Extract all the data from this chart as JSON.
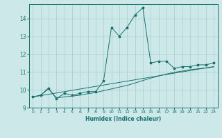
{
  "xlabel": "Humidex (Indice chaleur)",
  "bg_color": "#cce8e8",
  "line_color": "#1a7070",
  "grid_color": "#aacccc",
  "xlim": [
    -0.5,
    23.5
  ],
  "ylim": [
    9.0,
    14.8
  ],
  "yticks": [
    9,
    10,
    11,
    12,
    13,
    14
  ],
  "xticks": [
    0,
    1,
    2,
    3,
    4,
    5,
    6,
    7,
    8,
    9,
    10,
    11,
    12,
    13,
    14,
    15,
    16,
    17,
    18,
    19,
    20,
    21,
    22,
    23
  ],
  "series1_x": [
    0,
    1,
    2,
    3,
    4,
    5,
    6,
    7,
    8,
    9,
    10,
    11,
    12,
    13,
    14,
    15,
    16,
    17,
    18,
    19,
    20,
    21,
    22,
    23
  ],
  "series1_y": [
    9.6,
    9.7,
    10.1,
    9.5,
    9.8,
    9.7,
    9.8,
    9.9,
    9.9,
    10.5,
    13.5,
    13.0,
    13.5,
    14.2,
    14.6,
    11.5,
    11.6,
    11.6,
    11.2,
    11.3,
    11.3,
    11.4,
    11.4,
    11.5
  ],
  "series2_x": [
    0,
    1,
    2,
    3,
    4,
    5,
    6,
    7,
    8,
    9,
    10,
    11,
    12,
    13,
    14,
    15,
    16,
    17,
    18,
    19,
    20,
    21,
    22,
    23
  ],
  "series2_y": [
    9.6,
    9.7,
    10.05,
    9.55,
    9.6,
    9.65,
    9.7,
    9.78,
    9.85,
    9.95,
    10.05,
    10.15,
    10.25,
    10.38,
    10.52,
    10.65,
    10.78,
    10.88,
    10.98,
    11.05,
    11.12,
    11.18,
    11.22,
    11.28
  ],
  "series3_x": [
    0,
    23
  ],
  "series3_y": [
    9.6,
    11.3
  ]
}
